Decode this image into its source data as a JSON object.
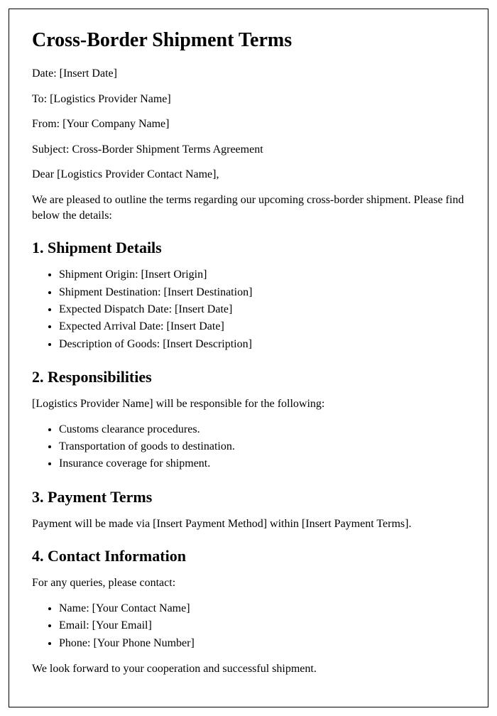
{
  "title": "Cross-Border Shipment Terms",
  "meta": {
    "date_line": "Date: [Insert Date]",
    "to_line": "To: [Logistics Provider Name]",
    "from_line": "From: [Your Company Name]",
    "subject_line": "Subject: Cross-Border Shipment Terms Agreement",
    "salutation": "Dear [Logistics Provider Contact Name],",
    "intro": "We are pleased to outline the terms regarding our upcoming cross-border shipment. Please find below the details:"
  },
  "section1": {
    "heading": "1. Shipment Details",
    "items": [
      "Shipment Origin: [Insert Origin]",
      "Shipment Destination: [Insert Destination]",
      "Expected Dispatch Date: [Insert Date]",
      "Expected Arrival Date: [Insert Date]",
      "Description of Goods: [Insert Description]"
    ]
  },
  "section2": {
    "heading": "2. Responsibilities",
    "intro": "[Logistics Provider Name] will be responsible for the following:",
    "items": [
      "Customs clearance procedures.",
      "Transportation of goods to destination.",
      "Insurance coverage for shipment."
    ]
  },
  "section3": {
    "heading": "3. Payment Terms",
    "text": "Payment will be made via [Insert Payment Method] within [Insert Payment Terms]."
  },
  "section4": {
    "heading": "4. Contact Information",
    "intro": "For any queries, please contact:",
    "items": [
      "Name: [Your Contact Name]",
      "Email: [Your Email]",
      "Phone: [Your Phone Number]"
    ],
    "closing": "We look forward to your cooperation and successful shipment."
  },
  "style": {
    "font_family": "Times New Roman",
    "h1_fontsize": 28,
    "h2_fontsize": 22,
    "body_fontsize": 16,
    "text_color": "#000000",
    "background_color": "#ffffff",
    "border_color": "#000000"
  }
}
